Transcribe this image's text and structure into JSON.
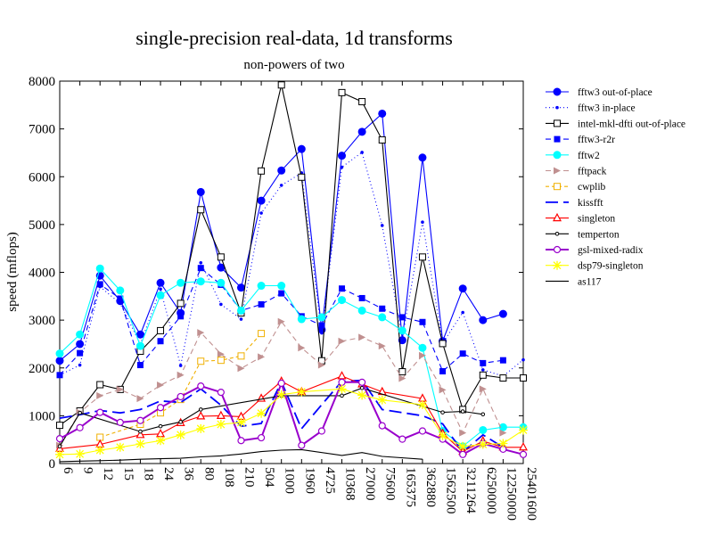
{
  "chart_data": {
    "type": "line",
    "title": "single-precision real-data, 1d transforms",
    "subtitle": "non-powers of two",
    "xlabel": "",
    "ylabel": "speed (mflops)",
    "ylim": [
      0,
      8000
    ],
    "yticks": [
      0,
      1000,
      2000,
      3000,
      4000,
      5000,
      6000,
      7000,
      8000
    ],
    "grid": false,
    "legend_position": "right",
    "categories": [
      "6",
      "9",
      "12",
      "15",
      "18",
      "24",
      "36",
      "80",
      "108",
      "210",
      "504",
      "1000",
      "1960",
      "4725",
      "10368",
      "27000",
      "75600",
      "165375",
      "362880",
      "1562500",
      "3211264",
      "6250000",
      "12250000",
      "25401600"
    ],
    "series": [
      {
        "name": "fftw3 out-of-place",
        "color": "#0000ff",
        "dash": "",
        "marker": "filled-circle",
        "values": [
          2150,
          2500,
          3930,
          3400,
          2700,
          3780,
          3150,
          5680,
          4100,
          3680,
          5500,
          6130,
          6580,
          2800,
          6440,
          6940,
          7320,
          2580,
          6400,
          2560,
          3660,
          3000,
          3130,
          null
        ]
      },
      {
        "name": "fftw3 in-place",
        "color": "#0000ff",
        "dash": "1,3",
        "marker": "dot",
        "values": [
          1850,
          2060,
          3700,
          3350,
          2500,
          3650,
          2050,
          4200,
          3330,
          3020,
          5240,
          5820,
          6080,
          2730,
          6200,
          6510,
          4980,
          2620,
          5050,
          2520,
          3160,
          1960,
          1830,
          2170
        ]
      },
      {
        "name": "intel-mkl-dfti out-of-place",
        "color": "#000000",
        "dash": "",
        "marker": "open-square",
        "values": [
          800,
          1100,
          1650,
          1550,
          2350,
          2780,
          3350,
          5310,
          4320,
          3150,
          6120,
          7920,
          5990,
          2150,
          7760,
          7570,
          6770,
          1920,
          4320,
          2510,
          1130,
          1850,
          1790,
          1790
        ]
      },
      {
        "name": "fftw3-r2r",
        "color": "#0000ff",
        "dash": "6,4",
        "marker": "filled-square",
        "values": [
          1850,
          2310,
          3750,
          3450,
          2060,
          2560,
          3080,
          4090,
          3740,
          3200,
          3330,
          3560,
          3080,
          2890,
          3660,
          3460,
          3240,
          3060,
          2960,
          1930,
          2300,
          2100,
          2160,
          null
        ]
      },
      {
        "name": "fftw2",
        "color": "#00ffff",
        "dash": "",
        "marker": "filled-circle",
        "values": [
          2300,
          2700,
          4080,
          3620,
          2460,
          3520,
          3780,
          3810,
          3780,
          3200,
          3720,
          3720,
          3020,
          3060,
          3420,
          3200,
          3060,
          2780,
          2420,
          680,
          360,
          700,
          760,
          760
        ]
      },
      {
        "name": "fftpack",
        "color": "#c09090",
        "dash": "6,4",
        "marker": "triangle-right",
        "values": [
          380,
          1070,
          1420,
          1550,
          1360,
          1640,
          1850,
          2740,
          2290,
          1990,
          2230,
          2970,
          2420,
          2060,
          2560,
          2640,
          2460,
          1780,
          2260,
          1540,
          640,
          1560,
          640,
          null
        ]
      },
      {
        "name": "cwplib",
        "color": "#f0b000",
        "dash": "4,3",
        "marker": "open-square",
        "values": [
          null,
          null,
          550,
          null,
          820,
          1060,
          1340,
          2140,
          2160,
          2250,
          2720,
          null,
          null,
          null,
          null,
          null,
          null,
          null,
          null,
          null,
          null,
          null,
          null,
          null
        ]
      },
      {
        "name": "kissfft",
        "color": "#0000ff",
        "dash": "14,6",
        "marker": "none",
        "values": [
          950,
          1020,
          1110,
          1060,
          1130,
          1310,
          1280,
          1560,
          1220,
          780,
          840,
          1710,
          730,
          1230,
          1720,
          1740,
          1130,
          null,
          1000,
          830,
          240,
          600,
          340,
          null
        ]
      },
      {
        "name": "singleton",
        "color": "#ff0000",
        "dash": "",
        "marker": "open-triangle",
        "values": [
          310,
          null,
          400,
          null,
          600,
          620,
          850,
          990,
          1000,
          980,
          1360,
          1720,
          1500,
          null,
          1830,
          1660,
          1500,
          null,
          1360,
          630,
          250,
          470,
          340,
          340
        ]
      },
      {
        "name": "temperton",
        "color": "#000000",
        "dash": "",
        "marker": "small-dot",
        "values": [
          360,
          1060,
          null,
          null,
          670,
          780,
          870,
          1130,
          null,
          null,
          null,
          1420,
          null,
          null,
          1420,
          1580,
          null,
          null,
          null,
          1070,
          1090,
          1030,
          null,
          null
        ]
      },
      {
        "name": "gsl-mixed-radix",
        "color": "#9900cc",
        "dash": "",
        "marker": "open-circle",
        "values": [
          520,
          750,
          1070,
          860,
          900,
          1170,
          1400,
          1620,
          1490,
          480,
          540,
          1680,
          380,
          680,
          1700,
          1700,
          790,
          510,
          680,
          510,
          190,
          420,
          300,
          190
        ]
      },
      {
        "name": "dsp79-singleton",
        "color": "#ffff00",
        "dash": "",
        "marker": "star",
        "values": [
          190,
          200,
          280,
          340,
          410,
          480,
          600,
          730,
          820,
          860,
          1050,
          1440,
          1500,
          null,
          1560,
          1430,
          1330,
          null,
          1230,
          580,
          360,
          400,
          420,
          700
        ]
      },
      {
        "name": "as117",
        "color": "#000000",
        "dash": "",
        "marker": "none",
        "values": [
          40,
          50,
          60,
          70,
          90,
          100,
          110,
          140,
          160,
          200,
          250,
          280,
          290,
          null,
          170,
          230,
          150,
          null,
          90,
          null,
          null,
          null,
          null,
          null
        ]
      }
    ]
  }
}
